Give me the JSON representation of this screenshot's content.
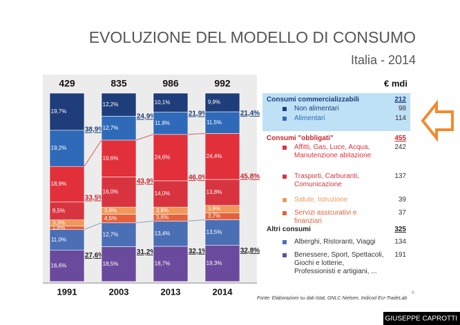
{
  "header": {
    "title": "EVOLUZIONE DEL MODELLO DI CONSUMO",
    "subtitle": "Italia - 2014"
  },
  "chart_data": {
    "type": "bar",
    "stacked": true,
    "categories": [
      "1991",
      "2003",
      "2013",
      "2014"
    ],
    "totals": [
      429,
      835,
      986,
      992
    ],
    "unit": "€ mdi",
    "groups": [
      {
        "name": "Consumi commercializzabili",
        "color": "#1f3d7a",
        "total": 212,
        "shares": [
          38.9,
          24.9,
          21.9,
          21.4
        ],
        "share_labels": [
          "38,9%",
          "24,9%",
          "21,9%",
          "21,4%"
        ],
        "items": [
          {
            "name": "Non alimentari",
            "color": "#1f3d7a",
            "amount": 98,
            "values": [
              19.7,
              12.2,
              10.1,
              9.9
            ],
            "value_labels": [
              "19,7%",
              "12,2%",
              "10,1%",
              "9,9%"
            ]
          },
          {
            "name": "Alimentari",
            "color": "#2f6ab8",
            "amount": 114,
            "values": [
              19.2,
              12.7,
              11.8,
              11.5
            ],
            "value_labels": [
              "19,2%",
              "12,7%",
              "11,8%",
              "11,5%"
            ]
          }
        ]
      },
      {
        "name": "Consumi \"obbligati\"",
        "color": "#c4262e",
        "total": 455,
        "shares": [
          33.5,
          43.9,
          46.0,
          45.8
        ],
        "share_labels": [
          "33,5%",
          "43,9%",
          "46,0%",
          "45,8%"
        ],
        "items": [
          {
            "name": "Affitti, Gas, Luce, Acqua, Manutenzione abitazione",
            "color": "#e2303a",
            "amount": 242,
            "values": [
              18.9,
              19.6,
              24.6,
              24.4
            ],
            "value_labels": [
              "18,9%",
              "19,6%",
              "24,6%",
              "24,4%"
            ]
          },
          {
            "name": "Trasporti, Carburanti, Comunicazione",
            "color": "#d8343f",
            "amount": 137,
            "values": [
              9.5,
              16.0,
              14.0,
              13.8
            ],
            "value_labels": [
              "9,5%",
              "16,0%",
              "14,0%",
              "13,8%"
            ]
          },
          {
            "name": "Salute, Istruzione",
            "color": "#f0975a",
            "amount": 39,
            "values": [
              3.3,
              3.8,
              3.8,
              3.9
            ],
            "value_labels": [
              "3,3%",
              "3,8%",
              "3,8%",
              "3,9%"
            ]
          },
          {
            "name": "Servizi assicurativi e finanziari",
            "color": "#e6603c",
            "amount": 37,
            "values": [
              1.8,
              4.5,
              3.6,
              3.7
            ],
            "value_labels": [
              "1,8%",
              "4,5%",
              "3,6%",
              "3,7%"
            ]
          }
        ]
      },
      {
        "name": "Altri consumi",
        "color": "#222222",
        "total": 325,
        "shares": [
          27.6,
          31.2,
          32.1,
          32.8
        ],
        "share_labels": [
          "27,6%",
          "31,2%",
          "32,1%",
          "32,8%"
        ],
        "items": [
          {
            "name": "Alberghi, Ristoranti, Viaggi",
            "color": "#4a6fb5",
            "amount": 134,
            "values": [
              11.0,
              12.7,
              13.4,
              13.5
            ],
            "value_labels": [
              "11,0%",
              "12,7%",
              "13,4%",
              "13,5%"
            ]
          },
          {
            "name": "Benessere, Sport, Spettacoli, Giochi e lotterie, Professionisti e artigiani, ...",
            "color": "#6a4a9c",
            "amount": 191,
            "values": [
              16.6,
              18.5,
              18.7,
              19.3
            ],
            "value_labels": [
              "16,6%",
              "18,5%",
              "18,7%",
              "19,3%"
            ]
          }
        ]
      }
    ]
  },
  "source": "Fonte: Elaborazioni su dati Istat, GNLC Nielsen, Indicod Ecr-TradeLab",
  "page_number": "8",
  "watermark": "© GIUSEPPE CAPROTTI"
}
